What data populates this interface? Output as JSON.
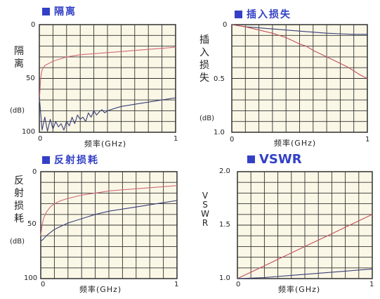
{
  "chart_data": [
    {
      "id": "isolation",
      "type": "line",
      "title": "隔离",
      "ylabel": "隔离",
      "yunit": "(dB)",
      "xlabel": "频率(GHz)",
      "ylim": [
        0,
        100
      ],
      "y_inverted": true,
      "yticks": [
        "0",
        "50",
        "100"
      ],
      "xticks": [
        "0",
        "1"
      ],
      "xlim": [
        0,
        1
      ],
      "grid": true,
      "series": [
        {
          "color": "#d06a78",
          "x": [
            0.0,
            0.005,
            0.01,
            0.02,
            0.04,
            0.07,
            0.1,
            0.15,
            0.2,
            0.3,
            0.4,
            0.5,
            0.6,
            0.7,
            0.8,
            0.9,
            1.0
          ],
          "y": [
            72,
            60,
            50,
            42,
            38,
            36,
            34,
            32,
            30,
            28,
            27,
            26,
            25,
            24,
            23,
            22,
            21
          ]
        },
        {
          "color": "#39407a",
          "x": [
            0.0,
            0.02,
            0.04,
            0.06,
            0.08,
            0.1,
            0.12,
            0.14,
            0.16,
            0.18,
            0.2,
            0.22,
            0.24,
            0.26,
            0.28,
            0.3,
            0.32,
            0.34,
            0.36,
            0.38,
            0.4,
            0.42,
            0.44,
            0.46,
            0.48,
            0.5,
            0.55,
            0.6,
            0.65,
            0.7,
            0.75,
            0.8,
            0.85,
            0.9,
            0.95,
            1.0
          ],
          "y": [
            67,
            98,
            86,
            99,
            88,
            97,
            90,
            95,
            92,
            98,
            90,
            94,
            86,
            92,
            84,
            88,
            86,
            90,
            82,
            86,
            80,
            84,
            81,
            79,
            82,
            80,
            78,
            76,
            75,
            74,
            73,
            72,
            71,
            70,
            69,
            68
          ]
        }
      ]
    },
    {
      "id": "insertion_loss",
      "type": "line",
      "title": "插入损失",
      "ylabel": "插入损失",
      "yunit": "(dB)",
      "xlabel": "频率(GHz)",
      "ylim": [
        0,
        1.0
      ],
      "y_inverted": true,
      "yticks": [
        "0",
        "0.5",
        "1.0"
      ],
      "xticks": [
        "0",
        "1"
      ],
      "xlim": [
        0,
        1
      ],
      "grid": true,
      "series": [
        {
          "color": "#39407a",
          "x": [
            0.0,
            0.05,
            0.1,
            0.2,
            0.3,
            0.4,
            0.5,
            0.6,
            0.7,
            0.8,
            0.9,
            1.0
          ],
          "y": [
            0.0,
            0.01,
            0.02,
            0.03,
            0.04,
            0.05,
            0.06,
            0.07,
            0.08,
            0.085,
            0.09,
            0.09
          ]
        },
        {
          "color": "#c0505a",
          "x": [
            0.0,
            0.05,
            0.1,
            0.2,
            0.3,
            0.4,
            0.5,
            0.55,
            0.6,
            0.65,
            0.7,
            0.75,
            0.8,
            0.85,
            0.9,
            0.95,
            1.0
          ],
          "y": [
            0.0,
            0.01,
            0.02,
            0.05,
            0.08,
            0.12,
            0.18,
            0.2,
            0.24,
            0.27,
            0.3,
            0.33,
            0.36,
            0.39,
            0.43,
            0.47,
            0.5
          ]
        }
      ]
    },
    {
      "id": "return_loss",
      "type": "line",
      "title": "反射损耗",
      "ylabel": "反射损耗",
      "yunit": "(dB)",
      "xlabel": "频率(GHz)",
      "ylim": [
        0,
        100
      ],
      "y_inverted": true,
      "yticks": [
        "0",
        "50",
        "100"
      ],
      "xticks": [
        "0",
        "1"
      ],
      "xlim": [
        0,
        1
      ],
      "grid": true,
      "series": [
        {
          "color": "#d06a78",
          "x": [
            0.0,
            0.01,
            0.02,
            0.04,
            0.07,
            0.1,
            0.15,
            0.2,
            0.3,
            0.4,
            0.5,
            0.6,
            0.7,
            0.8,
            0.9,
            1.0
          ],
          "y": [
            60,
            50,
            44,
            38,
            33,
            30,
            27,
            25,
            22,
            20,
            18,
            17,
            16,
            15,
            14,
            13
          ]
        },
        {
          "color": "#39407a",
          "x": [
            0.0,
            0.02,
            0.04,
            0.07,
            0.1,
            0.15,
            0.2,
            0.3,
            0.4,
            0.5,
            0.6,
            0.7,
            0.8,
            0.9,
            1.0
          ],
          "y": [
            65,
            63,
            60,
            57,
            54,
            51,
            48,
            44,
            40,
            37,
            35,
            33,
            31,
            29,
            27
          ]
        }
      ]
    },
    {
      "id": "vswr",
      "type": "line",
      "title": "VSWR",
      "ylabel": "VSWR",
      "xlabel": "频率(GHz)",
      "ylim": [
        1.0,
        2.0
      ],
      "yticks": [
        "1.0",
        "1.5",
        "2.0"
      ],
      "xticks": [
        "0",
        "1"
      ],
      "xlim": [
        0,
        1
      ],
      "grid": true,
      "series": [
        {
          "color": "#c0505a",
          "x": [
            0.0,
            0.1,
            0.2,
            0.3,
            0.4,
            0.5,
            0.6,
            0.7,
            0.8,
            0.9,
            1.0
          ],
          "y": [
            1.0,
            1.06,
            1.12,
            1.18,
            1.24,
            1.3,
            1.36,
            1.42,
            1.48,
            1.54,
            1.6
          ]
        },
        {
          "color": "#39407a",
          "x": [
            0.0,
            0.2,
            0.4,
            0.6,
            0.8,
            1.0
          ],
          "y": [
            1.0,
            1.01,
            1.03,
            1.05,
            1.07,
            1.09
          ]
        }
      ]
    }
  ]
}
